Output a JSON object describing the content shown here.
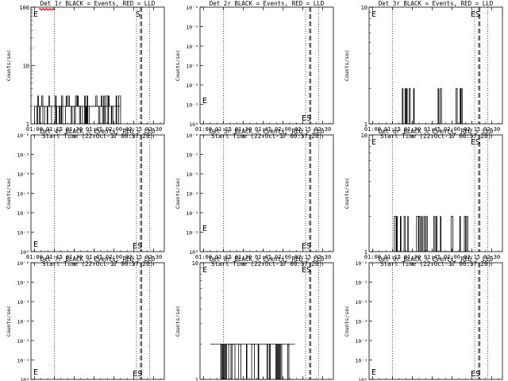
{
  "colors": {
    "events": "#000000",
    "lld": "#ff0000",
    "background": "#ffffff"
  },
  "chart_data": [
    {
      "type": "line",
      "title": "Det 1r BLACK = Events, RED = LLD",
      "xlabel": "Start Time (22-Oct-17 00:57:20)",
      "ylabel": "Counts/sec",
      "yscale": "log",
      "ylim": [
        1,
        100
      ],
      "y_ticks": [
        "1",
        "10",
        "100"
      ],
      "x_ticks": [
        "01:00",
        "01:15",
        "01:30",
        "01:45",
        "02:00",
        "02:15",
        "02:30"
      ],
      "dotted_lines": [
        "01:15",
        "02:17",
        "02:27"
      ],
      "dashed_lines": [
        "02:20",
        "02:21"
      ],
      "annotations": [
        "E",
        "S"
      ],
      "events": "dense 2–3 counts/sec from 01:00 to 02:05",
      "lld": "red points near 100 at ~01:10"
    },
    {
      "type": "line",
      "title": "Det 2r BLACK = Events, RED = LLD",
      "xlabel": "Start Time (22-Oct-17 00:57:20)",
      "ylabel": "Counts/sec",
      "yscale": "log",
      "ylim": [
        1,
        1e-06
      ],
      "y_ticks": [
        "10⁰",
        "10⁻¹",
        "10⁻²",
        "10⁻³",
        "10⁻⁴",
        "10⁻⁵",
        "10⁻⁶"
      ],
      "x_ticks": [
        "01:00",
        "01:15",
        "01:30",
        "01:45",
        "02:00",
        "02:15",
        "02:30"
      ],
      "dotted_lines": [
        "01:15",
        "02:17",
        "02:27"
      ],
      "dashed_lines": [
        "02:20",
        "02:21"
      ],
      "annotations": [
        "E",
        "ES"
      ],
      "events": "none"
    },
    {
      "type": "line",
      "title": "Det 3r BLACK = Events, RED = LLD",
      "xlabel": "Start Time (22-Oct-17 00:57:20)",
      "ylabel": "Counts/sec",
      "yscale": "log",
      "ylim": [
        1,
        10
      ],
      "y_ticks": [
        "1",
        "10"
      ],
      "x_ticks": [
        "01:00",
        "01:15",
        "01:30",
        "01:45",
        "02:00",
        "02:15",
        "02:30"
      ],
      "dotted_lines": [
        "01:15",
        "02:17",
        "02:27"
      ],
      "dashed_lines": [
        "02:20",
        "02:21"
      ],
      "annotations": [
        "E",
        "ES"
      ],
      "events": "bursts of ~2 counts/sec near 01:22–01:32, 01:44–01:52, 02:03–02:12"
    },
    {
      "type": "line",
      "title": "Det 4r BLACK = Events, RED = LLD",
      "xlabel": "Start Time (22-Oct-17 00:57:20)",
      "ylabel": "Counts/sec",
      "yscale": "log",
      "ylim": [
        1,
        1e-06
      ],
      "y_ticks": [
        "10⁰",
        "10⁻¹",
        "10⁻²",
        "10⁻³",
        "10⁻⁴",
        "10⁻⁵",
        "10⁻⁶"
      ],
      "x_ticks": [
        "01:00",
        "01:15",
        "01:30",
        "01:45",
        "02:00",
        "02:15",
        "02:30"
      ],
      "dotted_lines": [
        "01:15",
        "02:17",
        "02:27"
      ],
      "dashed_lines": [
        "02:20",
        "02:21"
      ],
      "annotations": [
        "E",
        "ES"
      ],
      "events": "none"
    },
    {
      "type": "line",
      "title": "Det 5r BLACK = Events, RED = LLD",
      "xlabel": "Start Time (22-Oct-17 00:57:20)",
      "ylabel": "Counts/sec",
      "yscale": "log",
      "ylim": [
        1,
        1e-06
      ],
      "y_ticks": [
        "10⁰",
        "10⁻¹",
        "10⁻²",
        "10⁻³",
        "10⁻⁴",
        "10⁻⁵",
        "10⁻⁶"
      ],
      "x_ticks": [
        "01:00",
        "01:15",
        "01:30",
        "01:45",
        "02:00",
        "02:15",
        "02:30"
      ],
      "dotted_lines": [
        "01:15",
        "02:17",
        "02:27"
      ],
      "dashed_lines": [
        "02:20",
        "02:21"
      ],
      "annotations": [
        "E",
        "ES"
      ],
      "events": "none"
    },
    {
      "type": "line",
      "title": "Det 6r BLACK = Events, RED = LLD",
      "xlabel": "Start Time (22-Oct-17 00:57:20)",
      "ylabel": "Counts/sec",
      "yscale": "log",
      "ylim": [
        1,
        10
      ],
      "y_ticks": [
        "1",
        "10"
      ],
      "x_ticks": [
        "01:00",
        "01:15",
        "01:30",
        "01:45",
        "02:00",
        "02:15",
        "02:30"
      ],
      "dotted_lines": [
        "01:15",
        "02:17",
        "02:27"
      ],
      "dashed_lines": [
        "02:20",
        "02:21"
      ],
      "annotations": [
        "E",
        "ES"
      ],
      "events": "scattered ~2 counts/sec from 01:15 to 02:15"
    },
    {
      "type": "line",
      "title": "Det 7r BLACK = Events, RED = LLD",
      "xlabel": "Start Time (22-Oct-17 00:57:20)",
      "ylabel": "Counts/sec",
      "yscale": "log",
      "ylim": [
        1,
        1e-06
      ],
      "y_ticks": [
        "10⁰",
        "10⁻¹",
        "10⁻²",
        "10⁻³",
        "10⁻⁴",
        "10⁻⁵",
        "10⁻⁶"
      ],
      "x_ticks": [
        "01:00",
        "01:15",
        "01:30",
        "01:45",
        "02:00",
        "02:15",
        "02:30"
      ],
      "dotted_lines": [
        "01:15",
        "02:17",
        "02:27"
      ],
      "dashed_lines": [
        "02:20",
        "02:21"
      ],
      "annotations": [
        "E",
        "ES"
      ],
      "events": "none"
    },
    {
      "type": "line",
      "title": "Det 8r BLACK = Events, RED = LLD",
      "xlabel": "Start Time (22-Oct-17 00:57:20)",
      "ylabel": "Counts/sec",
      "yscale": "log",
      "ylim": [
        1,
        10
      ],
      "y_ticks": [
        "1",
        "10"
      ],
      "x_ticks": [
        "01:00",
        "01:15",
        "01:30",
        "01:45",
        "02:00",
        "02:15",
        "02:30"
      ],
      "dotted_lines": [
        "01:15",
        "02:17",
        "02:27"
      ],
      "dashed_lines": [
        "02:20",
        "02:21"
      ],
      "annotations": [
        "E",
        "ES"
      ],
      "events": "dense ~2 counts/sec from 01:13 to 02:08"
    },
    {
      "type": "line",
      "title": "Det 9r BLACK = Events, RED = LLD",
      "xlabel": "Start Time (22-Oct-17 00:57:20)",
      "ylabel": "Counts/sec",
      "yscale": "log",
      "ylim": [
        1,
        1e-06
      ],
      "y_ticks": [
        "10⁰",
        "10⁻¹",
        "10⁻²",
        "10⁻³",
        "10⁻⁴",
        "10⁻⁵",
        "10⁻⁶"
      ],
      "x_ticks": [
        "01:00",
        "01:15",
        "01:30",
        "01:45",
        "02:00",
        "02:15",
        "02:30"
      ],
      "dotted_lines": [
        "01:15",
        "02:17",
        "02:27"
      ],
      "dashed_lines": [
        "02:20",
        "02:21"
      ],
      "annotations": [
        "E",
        "ES"
      ],
      "events": "none"
    }
  ]
}
